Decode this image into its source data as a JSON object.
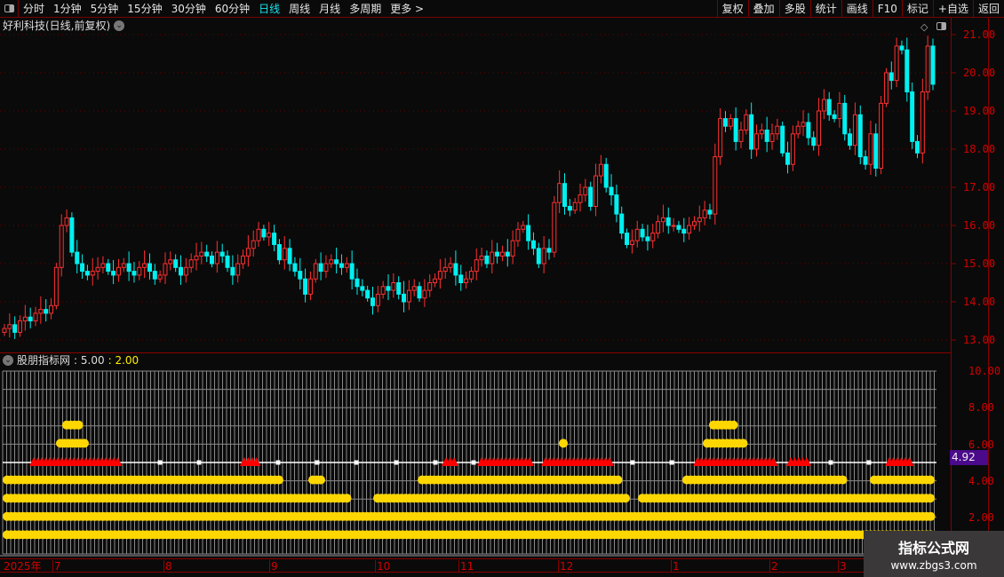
{
  "toolbar": {
    "periods": [
      "分时",
      "1分钟",
      "5分钟",
      "15分钟",
      "30分钟",
      "60分钟",
      "日线",
      "周线",
      "月线",
      "多周期",
      "更多 >"
    ],
    "active_period": "日线",
    "right_buttons": [
      "复权",
      "叠加",
      "多股",
      "统计",
      "画线",
      "F10",
      "标记",
      "+自选",
      "返回"
    ]
  },
  "chart": {
    "title": "好利科技(日线,前复权)",
    "price_axis": [
      "21.00",
      "20.00",
      "19.00",
      "18.00",
      "17.00",
      "16.00",
      "15.00",
      "14.00",
      "13.00"
    ],
    "colors": {
      "up": "#ff3030",
      "down": "#00f0f0",
      "grid": "#7a0000"
    },
    "close": [
      13.3,
      13.4,
      13.2,
      13.5,
      13.6,
      13.5,
      13.7,
      13.8,
      13.7,
      13.9,
      14.9,
      16.0,
      16.2,
      15.3,
      15.0,
      14.8,
      14.7,
      14.8,
      14.9,
      15.0,
      14.8,
      14.7,
      14.9,
      15.0,
      14.8,
      14.7,
      14.9,
      15.0,
      14.8,
      14.6,
      14.7,
      15.0,
      15.1,
      14.9,
      14.7,
      14.9,
      15.1,
      15.2,
      15.3,
      15.2,
      15.0,
      15.3,
      15.2,
      14.9,
      14.7,
      15.0,
      15.2,
      15.4,
      15.6,
      15.9,
      15.7,
      15.8,
      15.5,
      15.1,
      15.4,
      15.0,
      14.8,
      14.6,
      14.2,
      14.6,
      15.0,
      14.8,
      15.0,
      15.1,
      15.0,
      14.9,
      15.0,
      14.6,
      14.4,
      14.3,
      14.1,
      13.9,
      14.2,
      14.4,
      14.3,
      14.5,
      14.2,
      14.0,
      14.3,
      14.4,
      14.1,
      14.3,
      14.5,
      14.6,
      14.8,
      14.9,
      15.0,
      14.7,
      14.5,
      14.6,
      14.8,
      15.1,
      15.2,
      15.0,
      15.3,
      15.2,
      15.3,
      15.2,
      15.6,
      15.9,
      16.0,
      15.6,
      15.4,
      15.0,
      15.4,
      15.3,
      16.6,
      17.1,
      16.5,
      16.4,
      16.6,
      16.8,
      17.0,
      16.5,
      17.3,
      17.6,
      17.0,
      16.8,
      16.3,
      15.8,
      15.5,
      15.6,
      15.9,
      15.7,
      15.6,
      15.8,
      16.1,
      16.2,
      16.0,
      16.0,
      15.9,
      15.8,
      16.0,
      16.1,
      16.2,
      16.4,
      16.3,
      17.8,
      18.8,
      18.6,
      18.8,
      18.2,
      18.5,
      18.9,
      18.0,
      18.4,
      18.5,
      18.2,
      18.4,
      18.6,
      17.9,
      17.6,
      18.4,
      18.6,
      18.7,
      18.3,
      18.1,
      19.0,
      19.3,
      18.9,
      18.8,
      19.2,
      18.4,
      18.1,
      18.9,
      17.8,
      17.6,
      18.4,
      17.5,
      19.2,
      20.0,
      19.8,
      20.7,
      20.6,
      19.5,
      18.2,
      17.9,
      19.5,
      20.7,
      19.7
    ]
  },
  "indicator": {
    "name": "股朋指标网",
    "value1": ": 5.00",
    "value2": ": 2.00",
    "current": "4.92",
    "axis": [
      "10.00",
      "8.00",
      "6.00",
      "4.00",
      "2.00"
    ],
    "colors": {
      "dot": "#ffd700",
      "triangle": "#ff0000",
      "line": "#ffffff"
    },
    "dot_rows": [
      {
        "level": 1,
        "segments": [
          [
            "2025-07-start",
            "end"
          ]
        ]
      },
      {
        "level": 2,
        "segments": [
          [
            "start",
            "end"
          ]
        ]
      },
      {
        "level": 3,
        "segments": [
          [
            "start",
            "2025-09-late"
          ],
          [
            "2025-10-early",
            "2025-12-end"
          ],
          [
            "2025-12-end",
            "end"
          ]
        ]
      },
      {
        "level": 4,
        "segments": [
          [
            "start",
            "2025-09-mid"
          ],
          [
            "2025-09-late",
            "2025-09-late"
          ],
          [
            "2025-10-late",
            "2025-12-end"
          ],
          [
            "2026-01-mid",
            "2026-02-late"
          ],
          [
            "2026-03-early",
            "end"
          ]
        ]
      },
      {
        "level": 6,
        "segments": [
          [
            "2025-07-early",
            "2025-07-mid"
          ],
          [
            "2025-12-early",
            "2025-12-early"
          ],
          [
            "2026-01-mid",
            "2026-01-late"
          ]
        ]
      },
      {
        "level": 7,
        "segments": [
          [
            "2025-07-early",
            "2025-07-mid"
          ],
          [
            "2026-01-mid",
            "2026-01-late"
          ]
        ]
      }
    ],
    "triangle_level": 5
  },
  "dates": [
    "2025年",
    "7",
    "8",
    "9",
    "10",
    "11",
    "12",
    "1",
    "2",
    "3"
  ],
  "watermark": {
    "title": "指标公式网",
    "url": "www.zbgs3.com"
  }
}
